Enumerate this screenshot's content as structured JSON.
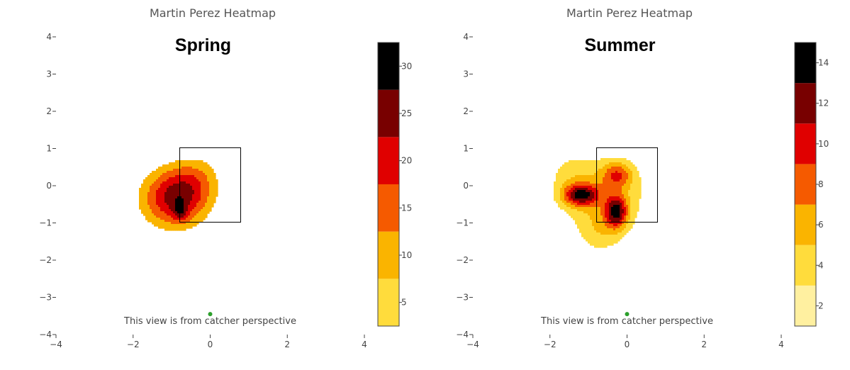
{
  "colors": {
    "scale": [
      "#ffffff",
      "#fff0a0",
      "#ffdc3c",
      "#fab400",
      "#f55a00",
      "#e00000",
      "#780000",
      "#000000"
    ],
    "strike_zone": "#000000",
    "catcher_dot": "#2ca02c"
  },
  "chart_data": [
    {
      "type": "heatmap",
      "title": "Martin Perez Heatmap",
      "annotation": "Spring",
      "note": "This view is from catcher perspective",
      "x_ticks": [
        "−4",
        "−2",
        "0",
        "2",
        "4"
      ],
      "y_ticks": [
        "4",
        "3",
        "2",
        "1",
        "0",
        "−1",
        "−2",
        "−3",
        "−4"
      ],
      "xlim": [
        -4,
        4
      ],
      "ylim": [
        -4,
        4
      ],
      "strike_zone": {
        "x": [
          -0.79,
          0.79
        ],
        "y": [
          -0.98,
          1.02
        ]
      },
      "catcher_point": {
        "x": 0,
        "y": -3.45
      },
      "colorbar": {
        "range": [
          2.5,
          32.5
        ],
        "ticks": [
          "5",
          "10",
          "15",
          "20",
          "25",
          "30"
        ],
        "levels": [
          2.5,
          7.5,
          12.5,
          17.5,
          22.5,
          27.5,
          32.5
        ]
      },
      "kernels": [
        {
          "x": -0.95,
          "y": -0.35,
          "sx": 0.62,
          "sy": 0.58,
          "w": 22
        },
        {
          "x": -0.45,
          "y": 0.05,
          "sx": 0.5,
          "sy": 0.5,
          "w": 8
        },
        {
          "x": -0.78,
          "y": -0.68,
          "sx": 0.13,
          "sy": 0.19,
          "w": 10
        },
        {
          "x": -0.15,
          "y": 0.45,
          "sx": 0.35,
          "sy": 0.35,
          "w": 2
        }
      ]
    },
    {
      "type": "heatmap",
      "title": "Martin Perez Heatmap",
      "annotation": "Summer",
      "note": "This view is from catcher perspective",
      "x_ticks": [
        "−4",
        "−2",
        "0",
        "2",
        "4"
      ],
      "y_ticks": [
        "4",
        "3",
        "2",
        "1",
        "0",
        "−1",
        "−2",
        "−3",
        "−4"
      ],
      "xlim": [
        -4,
        4
      ],
      "ylim": [
        -4,
        4
      ],
      "strike_zone": {
        "x": [
          -0.79,
          0.79
        ],
        "y": [
          -0.98,
          1.02
        ]
      },
      "catcher_point": {
        "x": 0,
        "y": -3.45
      },
      "colorbar": {
        "range": [
          1,
          15
        ],
        "ticks": [
          "2",
          "4",
          "6",
          "8",
          "10",
          "12",
          "14"
        ],
        "levels": [
          1,
          3,
          5,
          7,
          9,
          11,
          13,
          15
        ]
      },
      "kernels": [
        {
          "x": -1.2,
          "y": -0.25,
          "sx": 0.32,
          "sy": 0.2,
          "w": 10
        },
        {
          "x": -0.28,
          "y": -0.7,
          "sx": 0.2,
          "sy": 0.3,
          "w": 10
        },
        {
          "x": -0.25,
          "y": 0.3,
          "sx": 0.28,
          "sy": 0.25,
          "w": 6
        },
        {
          "x": -0.6,
          "y": -0.3,
          "sx": 0.9,
          "sy": 0.8,
          "w": 5
        },
        {
          "x": -0.7,
          "y": -1.3,
          "sx": 0.4,
          "sy": 0.45,
          "w": 2.5
        },
        {
          "x": -1.5,
          "y": 0.35,
          "sx": 0.45,
          "sy": 0.45,
          "w": 2
        }
      ]
    }
  ]
}
